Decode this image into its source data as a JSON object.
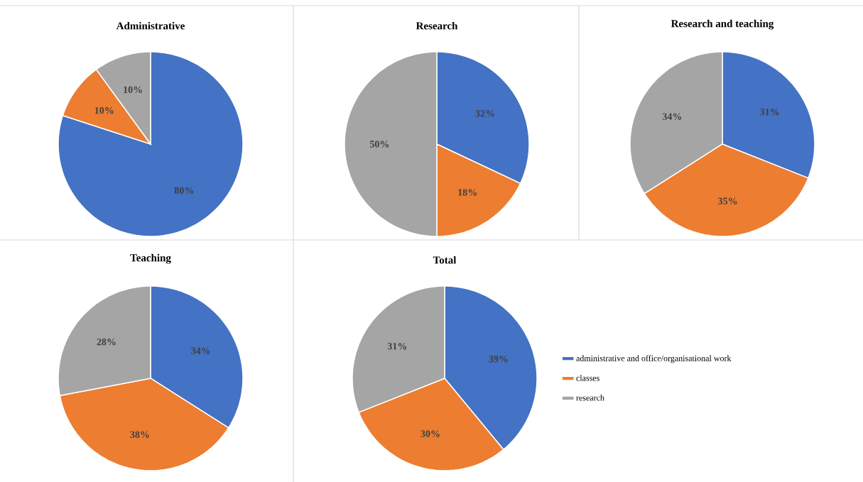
{
  "chart_data": [
    {
      "type": "pie",
      "title": "Administrative",
      "categories": [
        null,
        null,
        null
      ],
      "values": [
        80,
        10,
        10
      ],
      "value_labels": [
        "80%",
        "10%",
        "10%"
      ],
      "colors": [
        "#4472c4",
        "#ed7d31",
        "#a5a5a5"
      ]
    },
    {
      "type": "pie",
      "title": "Research",
      "categories": [
        null,
        null,
        null
      ],
      "values": [
        32,
        18,
        50
      ],
      "value_labels": [
        "32%",
        "18%",
        "50%"
      ],
      "colors": [
        "#4472c4",
        "#ed7d31",
        "#a5a5a5"
      ]
    },
    {
      "type": "pie",
      "title": "Research and teaching",
      "categories": [
        null,
        null,
        null
      ],
      "values": [
        31,
        35,
        34
      ],
      "value_labels": [
        "31%",
        "35%",
        "34%"
      ],
      "colors": [
        "#4472c4",
        "#ed7d31",
        "#a5a5a5"
      ]
    },
    {
      "type": "pie",
      "title": "Teaching",
      "categories": [
        null,
        null,
        null
      ],
      "values": [
        34,
        38,
        28
      ],
      "value_labels": [
        "34%",
        "38%",
        "28%"
      ],
      "colors": [
        "#4472c4",
        "#ed7d31",
        "#a5a5a5"
      ]
    },
    {
      "type": "pie",
      "title": "Total",
      "categories": [
        "administrative and office/organisational work",
        "classes",
        "research"
      ],
      "values": [
        39,
        30,
        31
      ],
      "value_labels": [
        "39%",
        "30%",
        "31%"
      ],
      "colors": [
        "#4472c4",
        "#ed7d31",
        "#a5a5a5"
      ],
      "legend": "right"
    }
  ]
}
